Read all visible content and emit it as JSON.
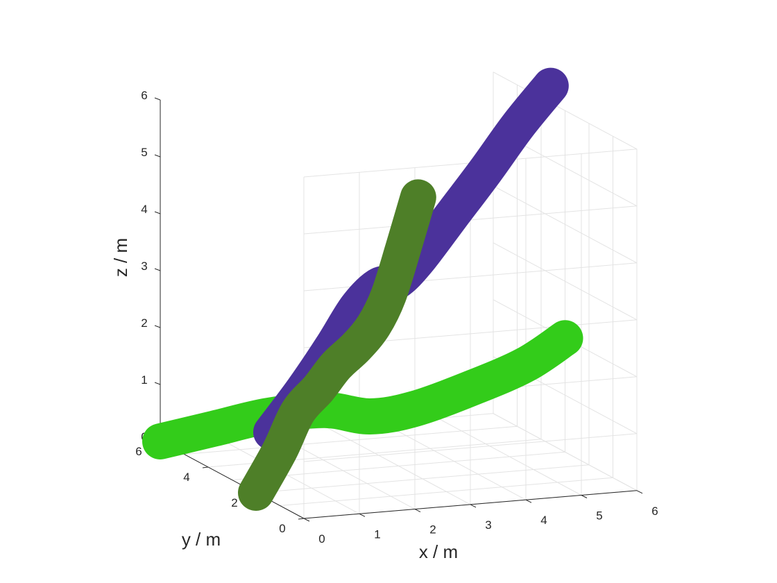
{
  "chart_data": {
    "type": "line3d",
    "title": "",
    "xlabel": "x / m",
    "ylabel": "y / m",
    "zlabel": "z / m",
    "xlim": [
      0,
      6
    ],
    "ylim": [
      0,
      6
    ],
    "zlim": [
      0,
      6
    ],
    "x_ticks": [
      "0",
      "1",
      "2",
      "3",
      "4",
      "5",
      "6"
    ],
    "y_ticks": [
      "0",
      "2",
      "4",
      "6"
    ],
    "z_ticks": [
      "0",
      "1",
      "2",
      "3",
      "4",
      "5",
      "6"
    ],
    "grid": true,
    "series": [
      {
        "color": "#33cc1a",
        "points": [
          {
            "x": 0.0,
            "y": 6.0,
            "z": 0.0
          },
          {
            "x": 0.8,
            "y": 5.6,
            "z": 0.25
          },
          {
            "x": 1.6,
            "y": 5.2,
            "z": 0.5
          },
          {
            "x": 2.4,
            "y": 4.7,
            "z": 0.65
          },
          {
            "x": 3.0,
            "y": 4.2,
            "z": 0.6
          },
          {
            "x": 3.6,
            "y": 3.7,
            "z": 0.8
          },
          {
            "x": 4.5,
            "y": 3.3,
            "z": 1.2
          },
          {
            "x": 5.3,
            "y": 3.0,
            "z": 1.6
          },
          {
            "x": 6.0,
            "y": 3.0,
            "z": 2.0
          }
        ]
      },
      {
        "color": "#4b329b",
        "points": [
          {
            "x": 2.0,
            "y": 6.0,
            "z": 0.0
          },
          {
            "x": 2.4,
            "y": 5.6,
            "z": 0.8
          },
          {
            "x": 2.8,
            "y": 5.3,
            "z": 1.6
          },
          {
            "x": 3.15,
            "y": 5.1,
            "z": 2.3
          },
          {
            "x": 3.45,
            "y": 4.9,
            "z": 2.7
          },
          {
            "x": 3.7,
            "y": 4.7,
            "z": 2.8
          },
          {
            "x": 4.0,
            "y": 4.5,
            "z": 3.2
          },
          {
            "x": 4.5,
            "y": 4.25,
            "z": 4.0
          },
          {
            "x": 5.0,
            "y": 4.0,
            "z": 4.8
          },
          {
            "x": 5.5,
            "y": 3.8,
            "z": 5.6
          },
          {
            "x": 6.0,
            "y": 3.6,
            "z": 6.3
          }
        ]
      },
      {
        "color": "#4e7f28",
        "points": [
          {
            "x": 0.0,
            "y": 2.0,
            "z": 0.0
          },
          {
            "x": 0.6,
            "y": 2.4,
            "z": 0.6
          },
          {
            "x": 1.1,
            "y": 2.8,
            "z": 1.15
          },
          {
            "x": 1.6,
            "y": 3.1,
            "z": 1.45
          },
          {
            "x": 2.05,
            "y": 3.4,
            "z": 1.75
          },
          {
            "x": 2.5,
            "y": 3.6,
            "z": 2.0
          },
          {
            "x": 2.9,
            "y": 3.8,
            "z": 2.3
          },
          {
            "x": 3.25,
            "y": 4.0,
            "z": 2.75
          },
          {
            "x": 3.6,
            "y": 4.2,
            "z": 3.5
          },
          {
            "x": 4.0,
            "y": 4.5,
            "z": 4.3
          }
        ]
      }
    ]
  }
}
